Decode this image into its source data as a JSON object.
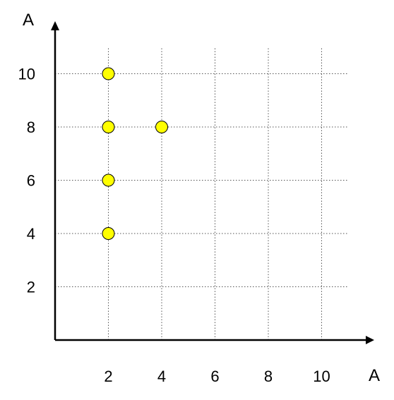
{
  "chart_data": {
    "type": "scatter",
    "title": "",
    "xlabel": "A",
    "ylabel": "A",
    "xlim": [
      0,
      12
    ],
    "ylim": [
      0,
      12
    ],
    "x_ticks": [
      2,
      4,
      6,
      8,
      10
    ],
    "y_ticks": [
      2,
      4,
      6,
      8,
      10
    ],
    "x_tick_labels": [
      "2",
      "4",
      "6",
      "8",
      "10"
    ],
    "y_tick_labels": [
      "2",
      "4",
      "6",
      "8",
      "10"
    ],
    "grid": true,
    "legend": "none",
    "point_color": "#FFFF00",
    "points": [
      {
        "x": 2,
        "y": 10
      },
      {
        "x": 2,
        "y": 8
      },
      {
        "x": 4,
        "y": 8
      },
      {
        "x": 2,
        "y": 6
      },
      {
        "x": 2,
        "y": 4
      }
    ]
  }
}
